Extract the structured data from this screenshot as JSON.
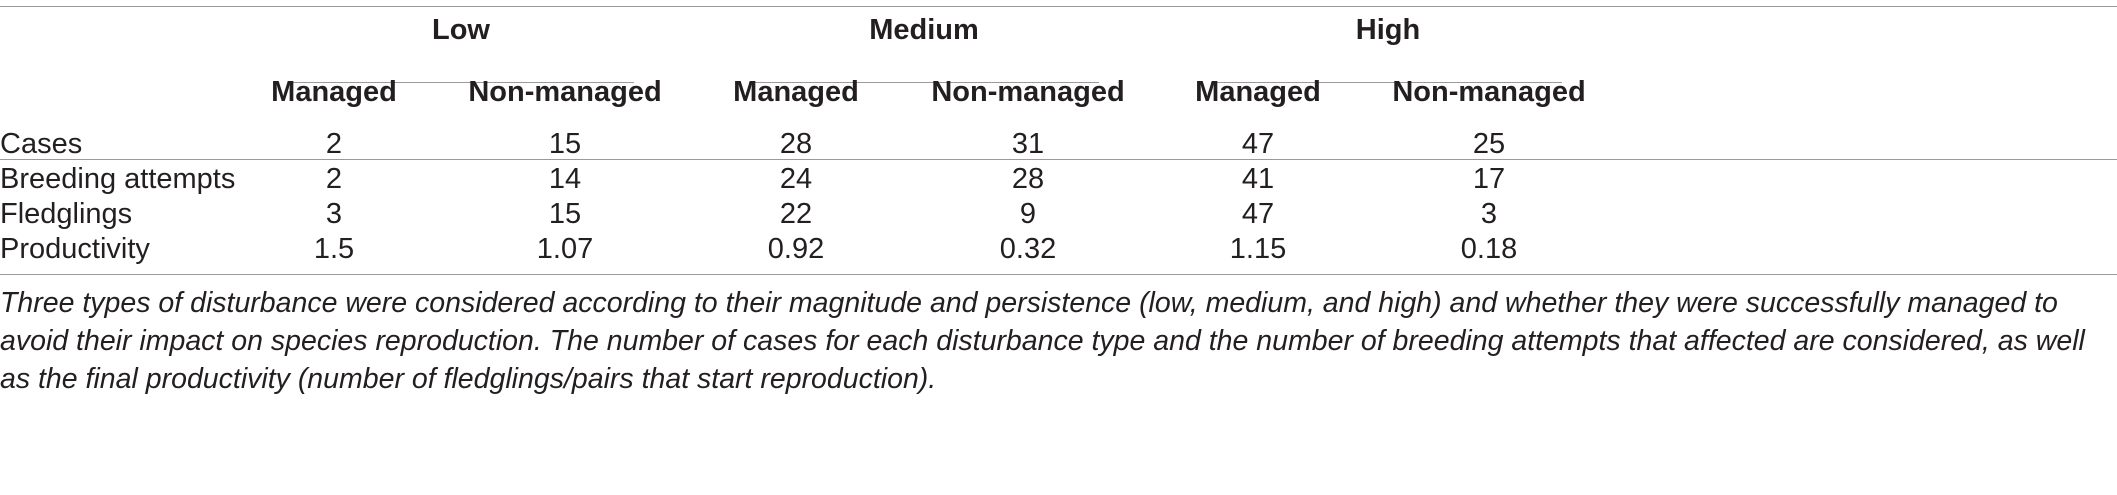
{
  "table": {
    "groups": [
      {
        "label": "Low"
      },
      {
        "label": "Medium"
      },
      {
        "label": "High"
      }
    ],
    "subheaders": [
      "Managed",
      "Non-managed",
      "Managed",
      "Non-managed",
      "Managed",
      "Non-managed"
    ],
    "rows": [
      {
        "label": "Cases",
        "values": [
          "2",
          "15",
          "28",
          "31",
          "47",
          "25"
        ]
      },
      {
        "label": "Breeding attempts",
        "values": [
          "2",
          "14",
          "24",
          "28",
          "41",
          "17"
        ]
      },
      {
        "label": "Fledglings",
        "values": [
          "3",
          "15",
          "22",
          "9",
          "47",
          "3"
        ]
      },
      {
        "label": "Productivity",
        "values": [
          "1.5",
          "1.07",
          "0.92",
          "0.32",
          "1.15",
          "0.18"
        ]
      }
    ]
  },
  "caption": "Three types of disturbance were considered according to their magnitude and persistence (low, medium, and high) and whether they were successfully managed to avoid their impact on species reproduction. The number of cases for each disturbance type and the number of breeding attempts that affected are considered, as well as the final productivity (number of fledglings/pairs that start reproduction)."
}
